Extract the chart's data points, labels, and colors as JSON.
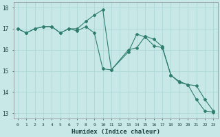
{
  "xlabel": "Humidex (Indice chaleur)",
  "background_color": "#c8e8e8",
  "grid_color": "#aad4d4",
  "line_color": "#2e7d6e",
  "xlim": [
    -0.5,
    23.5
  ],
  "ylim": [
    12.75,
    18.25
  ],
  "yticks": [
    13,
    14,
    15,
    16,
    17,
    18
  ],
  "xticks": [
    0,
    1,
    2,
    3,
    4,
    5,
    6,
    7,
    8,
    9,
    10,
    11,
    12,
    13,
    14,
    15,
    16,
    17,
    18,
    19,
    20,
    21,
    22,
    23
  ],
  "series1_x": [
    0,
    1,
    2,
    3,
    4,
    5,
    6,
    7,
    8,
    9,
    10,
    11,
    13,
    14,
    15,
    16,
    17,
    18,
    19,
    20,
    21,
    22,
    23
  ],
  "series1_y": [
    17.0,
    16.8,
    17.0,
    17.1,
    17.1,
    16.8,
    17.0,
    17.0,
    17.35,
    17.65,
    17.9,
    15.05,
    16.0,
    16.1,
    16.65,
    16.5,
    16.15,
    14.8,
    14.45,
    14.35,
    13.65,
    13.1,
    13.05
  ],
  "series2_x": [
    0,
    1,
    2,
    3,
    4,
    5,
    6,
    7,
    8,
    9,
    10,
    11,
    13,
    14,
    15,
    16,
    17,
    18,
    19,
    20,
    21,
    22,
    23
  ],
  "series2_y": [
    17.0,
    16.8,
    17.0,
    17.1,
    17.1,
    16.8,
    17.0,
    16.9,
    17.1,
    16.8,
    15.1,
    15.05,
    15.9,
    16.75,
    16.6,
    16.2,
    16.1,
    14.8,
    14.5,
    14.35,
    14.3,
    13.65,
    13.1
  ]
}
